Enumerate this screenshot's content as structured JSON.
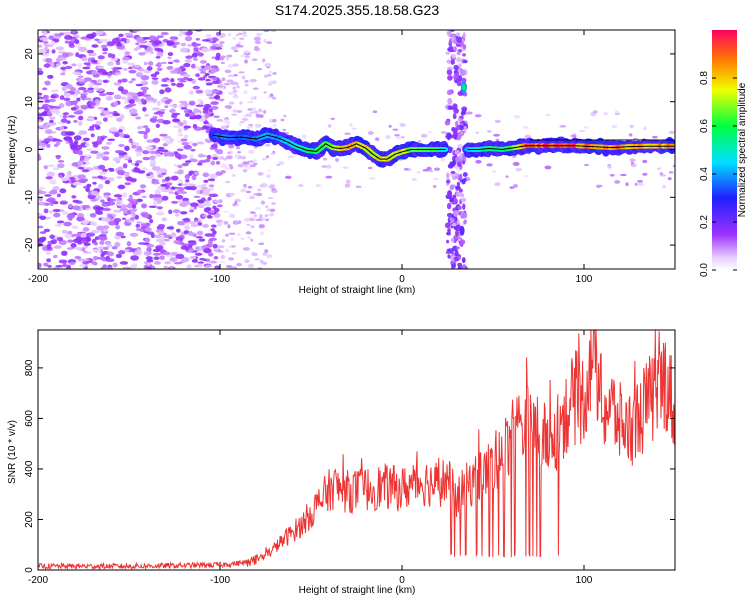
{
  "chart_data": [
    {
      "type": "heatmap",
      "title": "S174.2025.355.18.58.G23",
      "xlabel": "Height of straight line (km)",
      "ylabel": "Frequency (Hz)",
      "xlim": [
        -200,
        150
      ],
      "ylim": [
        -25,
        25
      ],
      "xticks": [
        -200,
        -100,
        0,
        100
      ],
      "yticks": [
        -20,
        -10,
        0,
        10,
        20
      ],
      "colorbar": {
        "label": "Normalized spectral amplitude",
        "range": [
          0,
          1
        ],
        "ticks": [
          "0.0",
          "0.2",
          "0.4",
          "0.6",
          "0.8"
        ],
        "tick_values": [
          0,
          0.2,
          0.4,
          0.6,
          0.8
        ]
      },
      "ridge_series": {
        "name": "dominant frequency",
        "x": [
          -104,
          -95,
          -88,
          -80,
          -74,
          -68,
          -63,
          -58,
          -52,
          -47,
          -42,
          -38,
          -34,
          -30,
          -25,
          -20,
          -16,
          -12,
          -8,
          -4,
          0,
          5,
          10,
          15,
          20,
          24,
          36,
          42,
          48,
          55,
          62,
          68,
          75,
          85,
          95,
          105,
          115,
          125,
          135,
          150
        ],
        "y": [
          3,
          2.5,
          2.6,
          2.2,
          3,
          2.4,
          1.6,
          0.6,
          -0.2,
          -0.4,
          1.2,
          0.4,
          0.2,
          0.4,
          1.2,
          0.3,
          -1,
          -2,
          -2,
          -1,
          -0.5,
          0,
          0,
          0,
          0,
          0,
          0,
          0,
          0.2,
          0,
          0.4,
          0.8,
          0.8,
          0.8,
          0.8,
          0.6,
          0.4,
          0.6,
          0.7,
          0.7
        ],
        "amplitude": [
          0.35,
          0.4,
          0.35,
          0.4,
          0.45,
          0.4,
          0.45,
          0.5,
          0.55,
          0.6,
          0.65,
          0.7,
          0.8,
          0.85,
          0.85,
          0.8,
          0.75,
          0.8,
          0.85,
          0.75,
          0.8,
          0.7,
          0.7,
          0.65,
          0.6,
          0.5,
          0.45,
          0.5,
          0.6,
          0.55,
          0.7,
          0.9,
          0.95,
          1.0,
          0.95,
          0.9,
          0.9,
          0.85,
          0.9,
          0.85
        ]
      },
      "burst_x": 31,
      "burst_high_frequency": 13
    },
    {
      "type": "line",
      "xlabel": "Height of straight line (km)",
      "ylabel": "SNR (10 * v/v)",
      "xlim": [
        -200,
        150
      ],
      "ylim": [
        0,
        950
      ],
      "xticks": [
        -200,
        -100,
        0,
        100
      ],
      "yticks": [
        0,
        200,
        400,
        600,
        800
      ],
      "series": [
        {
          "name": "SNR",
          "color": "#ee3333",
          "x": [
            -200,
            -150,
            -100,
            -85,
            -75,
            -65,
            -55,
            -45,
            -38,
            -30,
            -20,
            -10,
            0,
            10,
            20,
            25,
            30,
            35,
            40,
            45,
            50,
            55,
            60,
            65,
            70,
            75,
            80,
            85,
            90,
            95,
            100,
            105,
            110,
            115,
            120,
            125,
            130,
            135,
            140,
            145,
            150
          ],
          "y": [
            15,
            15,
            20,
            30,
            55,
            120,
            180,
            270,
            330,
            310,
            320,
            330,
            320,
            350,
            340,
            360,
            280,
            330,
            360,
            380,
            420,
            460,
            520,
            570,
            580,
            560,
            500,
            540,
            620,
            680,
            680,
            900,
            640,
            640,
            580,
            560,
            600,
            660,
            700,
            760,
            620
          ],
          "dropouts_x": [
            27,
            29,
            32,
            35,
            41,
            44,
            48,
            50,
            53,
            56,
            60,
            62,
            68,
            70,
            72,
            74,
            76,
            86
          ],
          "dropout_floor": 50
        }
      ]
    }
  ],
  "colors": {
    "line": "#ee3333",
    "ridge_line": "#000000",
    "noise": "#7b22e8"
  }
}
